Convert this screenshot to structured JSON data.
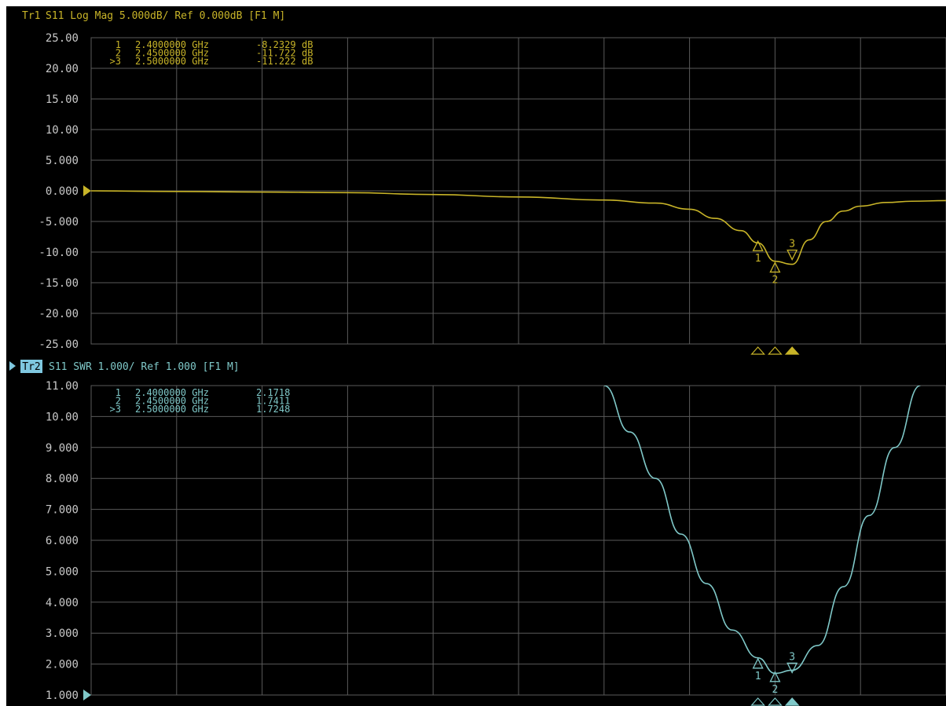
{
  "colors": {
    "background": "#000000",
    "grid": "#5a5a5a",
    "tick_label": "#c8c8c8",
    "trace1": "#c8b428",
    "trace2": "#7fc8c8",
    "active_trace_label_bg": "#7fc8e0"
  },
  "trace1": {
    "header": {
      "trace_id": "Tr1",
      "text": "S11 Log Mag 5.000dB/ Ref 0.000dB [F1 M]"
    },
    "marker_readouts": [
      {
        "id": "1",
        "freq": "2.4000000 GHz",
        "value": "-8.2329",
        "unit": "dB"
      },
      {
        "id": "2",
        "freq": "2.4500000 GHz",
        "value": "-11.722",
        "unit": "dB"
      },
      {
        "id": ">3",
        "freq": "2.5000000 GHz",
        "value": "-11.222",
        "unit": "dB"
      }
    ],
    "y_tick_labels": [
      "25.00",
      "20.00",
      "15.00",
      "10.00",
      "5.000",
      "0.000",
      "-5.000",
      "-10.00",
      "-15.00",
      "-20.00",
      "-25.00"
    ],
    "marker_flag_labels": [
      "1",
      "2",
      "3"
    ]
  },
  "trace2": {
    "header": {
      "trace_id": "Tr2",
      "text": "S11 SWR 1.000/ Ref 1.000 [F1 M]"
    },
    "marker_readouts": [
      {
        "id": "1",
        "freq": "2.4000000 GHz",
        "value": "2.1718",
        "unit": ""
      },
      {
        "id": "2",
        "freq": "2.4500000 GHz",
        "value": "1.7411",
        "unit": ""
      },
      {
        "id": ">3",
        "freq": "2.5000000 GHz",
        "value": "1.7248",
        "unit": ""
      }
    ],
    "y_tick_labels": [
      "11.00",
      "10.00",
      "9.000",
      "8.000",
      "7.000",
      "6.000",
      "5.000",
      "4.000",
      "3.000",
      "2.000",
      "1.000"
    ],
    "marker_flag_labels": [
      "1",
      "2",
      "3"
    ]
  },
  "chart_data": [
    {
      "type": "line",
      "title": "S11 Log Mag 5.000dB/ Ref 0.000dB [F1 M]",
      "ylabel": "",
      "xlabel": "",
      "ylim": [
        -25,
        25
      ],
      "xlim": [
        0,
        10
      ],
      "reference_level": 0,
      "grid": true,
      "series": [
        {
          "name": "Tr1",
          "x": [
            0,
            1,
            2,
            3,
            4,
            5,
            6,
            6.6,
            7,
            7.3,
            7.6,
            7.8,
            8.0,
            8.2,
            8.4,
            8.6,
            8.8,
            9.0,
            9.3,
            9.6,
            10
          ],
          "y": [
            0,
            -0.1,
            -0.2,
            -0.3,
            -0.6,
            -1.0,
            -1.5,
            -2.0,
            -3.0,
            -4.5,
            -6.5,
            -8.5,
            -11.5,
            -12.0,
            -8.0,
            -5.0,
            -3.3,
            -2.5,
            -1.9,
            -1.7,
            -1.6
          ]
        }
      ],
      "markers": [
        {
          "label": "1",
          "x": 7.8,
          "y": -8.2329
        },
        {
          "label": "2",
          "x": 8.0,
          "y": -11.722
        },
        {
          "label": "3",
          "x": 8.2,
          "y": -11.222
        }
      ]
    },
    {
      "type": "line",
      "title": "S11 SWR 1.000/ Ref 1.000 [F1 M]",
      "ylabel": "",
      "xlabel": "",
      "ylim": [
        1,
        11
      ],
      "xlim": [
        0,
        10
      ],
      "reference_level": 1,
      "grid": true,
      "series": [
        {
          "name": "Tr2",
          "x": [
            6.0,
            6.3,
            6.6,
            6.9,
            7.2,
            7.5,
            7.8,
            8.0,
            8.2,
            8.5,
            8.8,
            9.1,
            9.4,
            9.7
          ],
          "y": [
            11,
            9.5,
            8.0,
            6.2,
            4.6,
            3.1,
            2.2,
            1.7,
            1.8,
            2.6,
            4.5,
            6.8,
            9.0,
            11
          ]
        }
      ],
      "markers": [
        {
          "label": "1",
          "x": 7.8,
          "y": 2.1718
        },
        {
          "label": "2",
          "x": 8.0,
          "y": 1.7411
        },
        {
          "label": "3",
          "x": 8.2,
          "y": 1.7248
        }
      ]
    }
  ]
}
